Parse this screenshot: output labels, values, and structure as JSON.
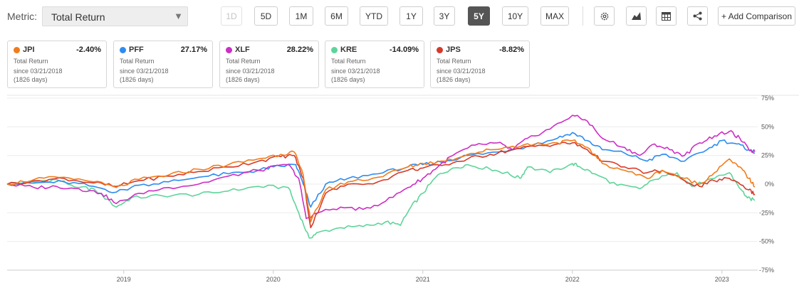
{
  "header": {
    "metric_label": "Metric:",
    "metric_value": "Total Return",
    "ranges": [
      "1D",
      "5D",
      "1M",
      "6M",
      "YTD",
      "1Y",
      "3Y",
      "5Y",
      "10Y",
      "MAX"
    ],
    "active_range": "5Y",
    "disabled_range": "1D",
    "add_comparison": "+ Add Comparison",
    "tool_icons": [
      "gear-icon",
      "mountain-chart-icon",
      "table-icon",
      "share-icon"
    ]
  },
  "cards": [
    {
      "symbol": "JPI",
      "change": "-2.40%",
      "color": "#f07c1c",
      "metric": "Total Return",
      "since": "since 03/21/2018",
      "days": "(1826 days)"
    },
    {
      "symbol": "PFF",
      "change": "27.17%",
      "color": "#2d8cf0",
      "metric": "Total Return",
      "since": "since 03/21/2018",
      "days": "(1826 days)"
    },
    {
      "symbol": "XLF",
      "change": "28.22%",
      "color": "#cc2fc4",
      "metric": "Total Return",
      "since": "since 03/21/2018",
      "days": "(1826 days)"
    },
    {
      "symbol": "KRE",
      "change": "-14.09%",
      "color": "#5ed49a",
      "metric": "Total Return",
      "since": "since 03/21/2018",
      "days": "(1826 days)"
    },
    {
      "symbol": "JPS",
      "change": "-8.82%",
      "color": "#d63a2a",
      "metric": "Total Return",
      "since": "since 03/21/2018",
      "days": "(1826 days)"
    }
  ],
  "chart_data": {
    "type": "line",
    "xlim": [
      2018.22,
      2023.22
    ],
    "ylim": [
      -75,
      75
    ],
    "x_ticks": [
      2019,
      2020,
      2021,
      2022,
      2023
    ],
    "x_tick_labels": [
      "2019",
      "2020",
      "2021",
      "2022",
      "2023"
    ],
    "y_ticks": [
      75,
      50,
      25,
      0,
      -25,
      -50,
      -75
    ],
    "y_tick_labels": [
      "75%",
      "50%",
      "25%",
      "0%",
      "-25%",
      "-50%",
      "-75%"
    ],
    "grid": "horizontal",
    "series": [
      {
        "name": "KRE",
        "color": "#5ed49a",
        "points": [
          [
            2018.22,
            0
          ],
          [
            2018.4,
            2
          ],
          [
            2018.55,
            4
          ],
          [
            2018.7,
            -3
          ],
          [
            2018.8,
            -4
          ],
          [
            2018.95,
            -20
          ],
          [
            2019.05,
            -12
          ],
          [
            2019.25,
            -10
          ],
          [
            2019.5,
            -9
          ],
          [
            2019.7,
            -6
          ],
          [
            2019.9,
            -2
          ],
          [
            2020.1,
            -3
          ],
          [
            2020.17,
            -25
          ],
          [
            2020.24,
            -47
          ],
          [
            2020.3,
            -42
          ],
          [
            2020.45,
            -38
          ],
          [
            2020.6,
            -37
          ],
          [
            2020.75,
            -33
          ],
          [
            2020.85,
            -36
          ],
          [
            2020.92,
            -20
          ],
          [
            2021.0,
            -8
          ],
          [
            2021.1,
            8
          ],
          [
            2021.2,
            14
          ],
          [
            2021.3,
            17
          ],
          [
            2021.45,
            13
          ],
          [
            2021.55,
            10
          ],
          [
            2021.65,
            5
          ],
          [
            2021.7,
            15
          ],
          [
            2021.85,
            10
          ],
          [
            2022.0,
            18
          ],
          [
            2022.05,
            15
          ],
          [
            2022.15,
            9
          ],
          [
            2022.3,
            -1
          ],
          [
            2022.45,
            -4
          ],
          [
            2022.55,
            4
          ],
          [
            2022.7,
            10
          ],
          [
            2022.8,
            -2
          ],
          [
            2022.95,
            5
          ],
          [
            2023.05,
            10
          ],
          [
            2023.13,
            -5
          ],
          [
            2023.17,
            -12
          ],
          [
            2023.22,
            -14.09
          ]
        ]
      },
      {
        "name": "PFF",
        "color": "#2d8cf0",
        "points": [
          [
            2018.22,
            0
          ],
          [
            2018.4,
            1
          ],
          [
            2018.6,
            2
          ],
          [
            2018.8,
            -2
          ],
          [
            2018.95,
            -7
          ],
          [
            2019.1,
            -1
          ],
          [
            2019.3,
            2
          ],
          [
            2019.5,
            6
          ],
          [
            2019.7,
            9
          ],
          [
            2019.9,
            12
          ],
          [
            2020.0,
            15
          ],
          [
            2020.15,
            17
          ],
          [
            2020.2,
            0
          ],
          [
            2020.25,
            -20
          ],
          [
            2020.35,
            0
          ],
          [
            2020.5,
            5
          ],
          [
            2020.7,
            9
          ],
          [
            2020.9,
            15
          ],
          [
            2021.0,
            17
          ],
          [
            2021.15,
            20
          ],
          [
            2021.3,
            25
          ],
          [
            2021.5,
            28
          ],
          [
            2021.7,
            33
          ],
          [
            2021.9,
            40
          ],
          [
            2022.0,
            45
          ],
          [
            2022.1,
            38
          ],
          [
            2022.2,
            30
          ],
          [
            2022.35,
            27
          ],
          [
            2022.5,
            20
          ],
          [
            2022.6,
            26
          ],
          [
            2022.75,
            20
          ],
          [
            2022.9,
            30
          ],
          [
            2023.0,
            38
          ],
          [
            2023.1,
            35
          ],
          [
            2023.18,
            30
          ],
          [
            2023.22,
            27.17
          ]
        ]
      },
      {
        "name": "XLF",
        "color": "#cc2fc4",
        "points": [
          [
            2018.22,
            0
          ],
          [
            2018.4,
            -3
          ],
          [
            2018.55,
            -2
          ],
          [
            2018.7,
            -4
          ],
          [
            2018.85,
            -8
          ],
          [
            2018.95,
            -17
          ],
          [
            2019.1,
            -8
          ],
          [
            2019.3,
            -3
          ],
          [
            2019.5,
            0
          ],
          [
            2019.7,
            7
          ],
          [
            2019.9,
            12
          ],
          [
            2020.1,
            17
          ],
          [
            2020.17,
            5
          ],
          [
            2020.22,
            -30
          ],
          [
            2020.3,
            -25
          ],
          [
            2020.45,
            -20
          ],
          [
            2020.6,
            -22
          ],
          [
            2020.75,
            -15
          ],
          [
            2020.9,
            -3
          ],
          [
            2021.0,
            5
          ],
          [
            2021.1,
            15
          ],
          [
            2021.2,
            25
          ],
          [
            2021.35,
            34
          ],
          [
            2021.5,
            36
          ],
          [
            2021.6,
            30
          ],
          [
            2021.7,
            40
          ],
          [
            2021.85,
            48
          ],
          [
            2022.0,
            60
          ],
          [
            2022.1,
            55
          ],
          [
            2022.2,
            40
          ],
          [
            2022.35,
            32
          ],
          [
            2022.45,
            25
          ],
          [
            2022.55,
            35
          ],
          [
            2022.65,
            30
          ],
          [
            2022.75,
            25
          ],
          [
            2022.85,
            36
          ],
          [
            2022.95,
            42
          ],
          [
            2023.05,
            46
          ],
          [
            2023.12,
            40
          ],
          [
            2023.18,
            30
          ],
          [
            2023.22,
            28.22
          ]
        ]
      },
      {
        "name": "JPS",
        "color": "#d63a2a",
        "points": [
          [
            2018.22,
            0
          ],
          [
            2018.4,
            3
          ],
          [
            2018.6,
            5
          ],
          [
            2018.8,
            1
          ],
          [
            2018.95,
            -2
          ],
          [
            2019.1,
            3
          ],
          [
            2019.3,
            7
          ],
          [
            2019.5,
            11
          ],
          [
            2019.7,
            15
          ],
          [
            2019.9,
            20
          ],
          [
            2020.05,
            24
          ],
          [
            2020.14,
            25
          ],
          [
            2020.2,
            5
          ],
          [
            2020.25,
            -38
          ],
          [
            2020.35,
            -8
          ],
          [
            2020.5,
            0
          ],
          [
            2020.7,
            2
          ],
          [
            2020.9,
            12
          ],
          [
            2021.0,
            14
          ],
          [
            2021.15,
            17
          ],
          [
            2021.3,
            22
          ],
          [
            2021.45,
            26
          ],
          [
            2021.6,
            30
          ],
          [
            2021.75,
            33
          ],
          [
            2021.9,
            35
          ],
          [
            2022.0,
            36
          ],
          [
            2022.1,
            30
          ],
          [
            2022.2,
            20
          ],
          [
            2022.35,
            15
          ],
          [
            2022.5,
            10
          ],
          [
            2022.6,
            12
          ],
          [
            2022.75,
            3
          ],
          [
            2022.85,
            -2
          ],
          [
            2022.95,
            3
          ],
          [
            2023.05,
            5
          ],
          [
            2023.12,
            0
          ],
          [
            2023.18,
            -5
          ],
          [
            2023.22,
            -8.82
          ]
        ]
      },
      {
        "name": "JPI",
        "color": "#f07c1c",
        "points": [
          [
            2018.22,
            0
          ],
          [
            2018.4,
            4
          ],
          [
            2018.6,
            6
          ],
          [
            2018.8,
            2
          ],
          [
            2018.95,
            -3
          ],
          [
            2019.1,
            4
          ],
          [
            2019.3,
            8
          ],
          [
            2019.5,
            13
          ],
          [
            2019.7,
            17
          ],
          [
            2019.9,
            22
          ],
          [
            2020.05,
            26
          ],
          [
            2020.14,
            28
          ],
          [
            2020.2,
            8
          ],
          [
            2020.25,
            -33
          ],
          [
            2020.35,
            -5
          ],
          [
            2020.5,
            2
          ],
          [
            2020.7,
            6
          ],
          [
            2020.9,
            15
          ],
          [
            2021.0,
            18
          ],
          [
            2021.15,
            20
          ],
          [
            2021.3,
            26
          ],
          [
            2021.45,
            30
          ],
          [
            2021.6,
            33
          ],
          [
            2021.75,
            35
          ],
          [
            2021.9,
            36
          ],
          [
            2022.0,
            38
          ],
          [
            2022.1,
            32
          ],
          [
            2022.2,
            18
          ],
          [
            2022.35,
            12
          ],
          [
            2022.5,
            5
          ],
          [
            2022.6,
            12
          ],
          [
            2022.75,
            5
          ],
          [
            2022.85,
            0
          ],
          [
            2022.95,
            10
          ],
          [
            2023.05,
            22
          ],
          [
            2023.12,
            15
          ],
          [
            2023.18,
            5
          ],
          [
            2023.22,
            -2.4
          ]
        ]
      }
    ]
  }
}
